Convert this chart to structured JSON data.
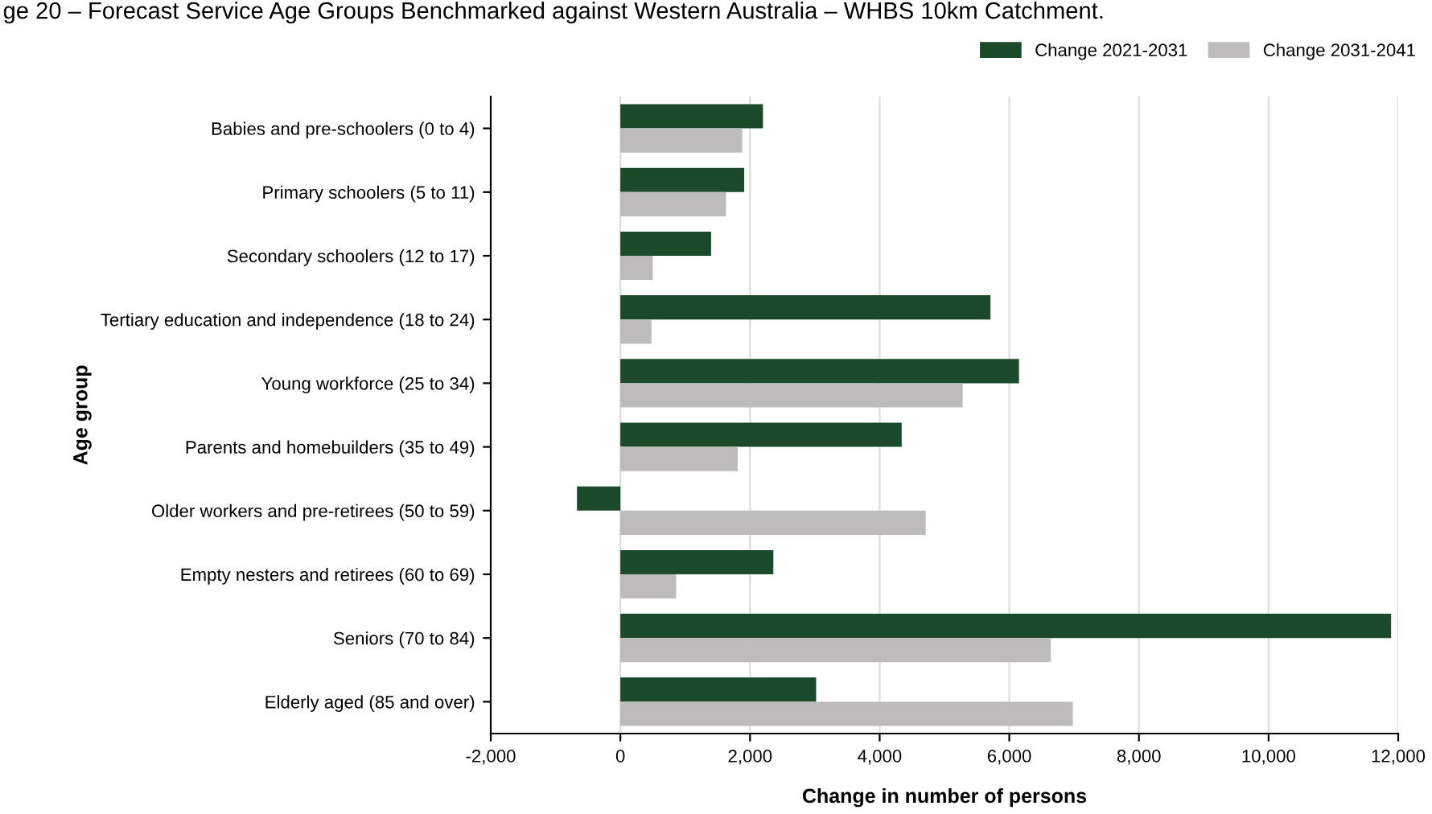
{
  "chart_data": {
    "type": "bar",
    "orientation": "horizontal",
    "title": "ge 20 – Forecast Service Age Groups Benchmarked against Western Australia – WHBS 10km Catchment.",
    "xlabel": "Change in number of persons",
    "ylabel": "Age group",
    "categories": [
      "Babies and pre-schoolers (0 to 4)",
      "Primary schoolers (5 to 11)",
      "Secondary schoolers (12 to 17)",
      "Tertiary education and independence (18 to 24)",
      "Young workforce (25 to 34)",
      "Parents and homebuilders (35 to 49)",
      "Older workers and pre-retirees (50 to 59)",
      "Empty nesters and retirees (60 to 69)",
      "Seniors (70 to 84)",
      "Elderly aged (85 and over)"
    ],
    "series": [
      {
        "name": "Change 2021-2031",
        "color": "#1a4a29",
        "values": [
          2200,
          1910,
          1400,
          5710,
          6150,
          4340,
          -670,
          2360,
          11890,
          3020
        ]
      },
      {
        "name": "Change 2031-2041",
        "color": "#bdbbbc",
        "values": [
          1880,
          1630,
          500,
          480,
          5280,
          1810,
          4710,
          860,
          6640,
          6980
        ]
      }
    ],
    "xlim": [
      -2000,
      12000
    ],
    "xticks": [
      {
        "value": -2000,
        "label": "-2,000"
      },
      0,
      {
        "value": 2000,
        "label": "2,000"
      },
      {
        "value": 4000,
        "label": "4,000"
      },
      {
        "value": 6000,
        "label": "6,000"
      },
      {
        "value": 8000,
        "label": "8,000"
      },
      {
        "value": 10000,
        "label": "10,000"
      },
      {
        "value": 12000,
        "label": "12,000"
      }
    ],
    "grid": "x",
    "legend": "top right"
  }
}
